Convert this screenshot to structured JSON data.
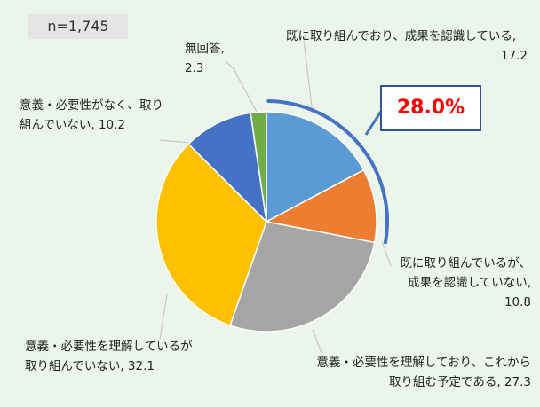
{
  "sample_size": "n=1,745",
  "highlight": {
    "value_text": "28.0%",
    "color": "#FF0000",
    "border_color": "#2F5597",
    "arc_color": "#4472C4"
  },
  "labels": {
    "s1_line1": "既に取り組んでおり、成果を認識している,",
    "s1_line2": "17.2",
    "s2_line1": "既に取り組んでいるが、",
    "s2_line2": "成果を認識していない,",
    "s2_line3": "10.8",
    "s3_line1": "意義・必要性を理解しており、これから",
    "s3_line2": "取り組む予定である, 27.3",
    "s4_line1": "意義・必要性を理解しているが",
    "s4_line2": "取り組んでいない, 32.1",
    "s5_line1": "意義・必要性がなく、取り",
    "s5_line2": "組んでいない, 10.2",
    "s6_line1": "無回答,",
    "s6_line2": "2.3"
  },
  "chart_data": {
    "type": "pie",
    "sample_size": "n=1,745",
    "slices": [
      {
        "label": "既に取り組んでおり、成果を認識している",
        "value": 17.2,
        "color": "#5B9BD5"
      },
      {
        "label": "既に取り組んでいるが、成果を認識していない",
        "value": 10.8,
        "color": "#ED7D31"
      },
      {
        "label": "意義・必要性を理解しており、これから取り組む予定である",
        "value": 27.3,
        "color": "#A5A5A5"
      },
      {
        "label": "意義・必要性を理解しているが取り組んでいない",
        "value": 32.1,
        "color": "#FFC000"
      },
      {
        "label": "意義・必要性がなく、取り組んでいない",
        "value": 10.2,
        "color": "#4472C4"
      },
      {
        "label": "無回答",
        "value": 2.3,
        "color": "#70AD47"
      }
    ],
    "highlight_total": 28.0,
    "highlight_slices": [
      0,
      1
    ],
    "start_angle": "12 o'clock",
    "direction": "clockwise"
  }
}
